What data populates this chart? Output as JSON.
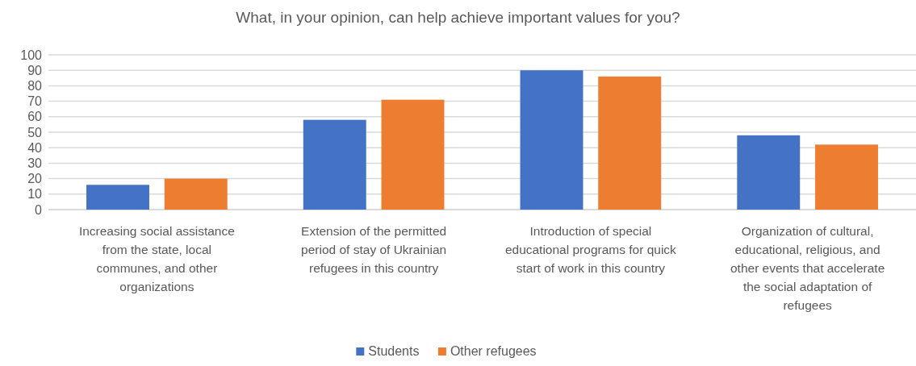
{
  "chart_data": {
    "type": "bar",
    "title": "What, in your opinion, can help achieve important values for you?",
    "categories": [
      "Increasing social assistance from the state, local communes, and other organizations",
      "Extension of the permitted period of stay of Ukrainian refugees in this country",
      "Introduction of special educational programs for quick start of work in this country",
      "Organization of cultural, educational, religious, and other events that accelerate the social adaptation of refugees"
    ],
    "series": [
      {
        "name": "Students",
        "color": "#4472c4",
        "values": [
          16,
          58,
          90,
          48
        ]
      },
      {
        "name": "Other refugees",
        "color": "#ed7d31",
        "values": [
          20,
          71,
          86,
          42
        ]
      }
    ],
    "ylim": [
      0,
      100
    ],
    "yticks": [
      0,
      10,
      20,
      30,
      40,
      50,
      60,
      70,
      80,
      90,
      100
    ],
    "grid": "y",
    "legend": "bottom"
  }
}
